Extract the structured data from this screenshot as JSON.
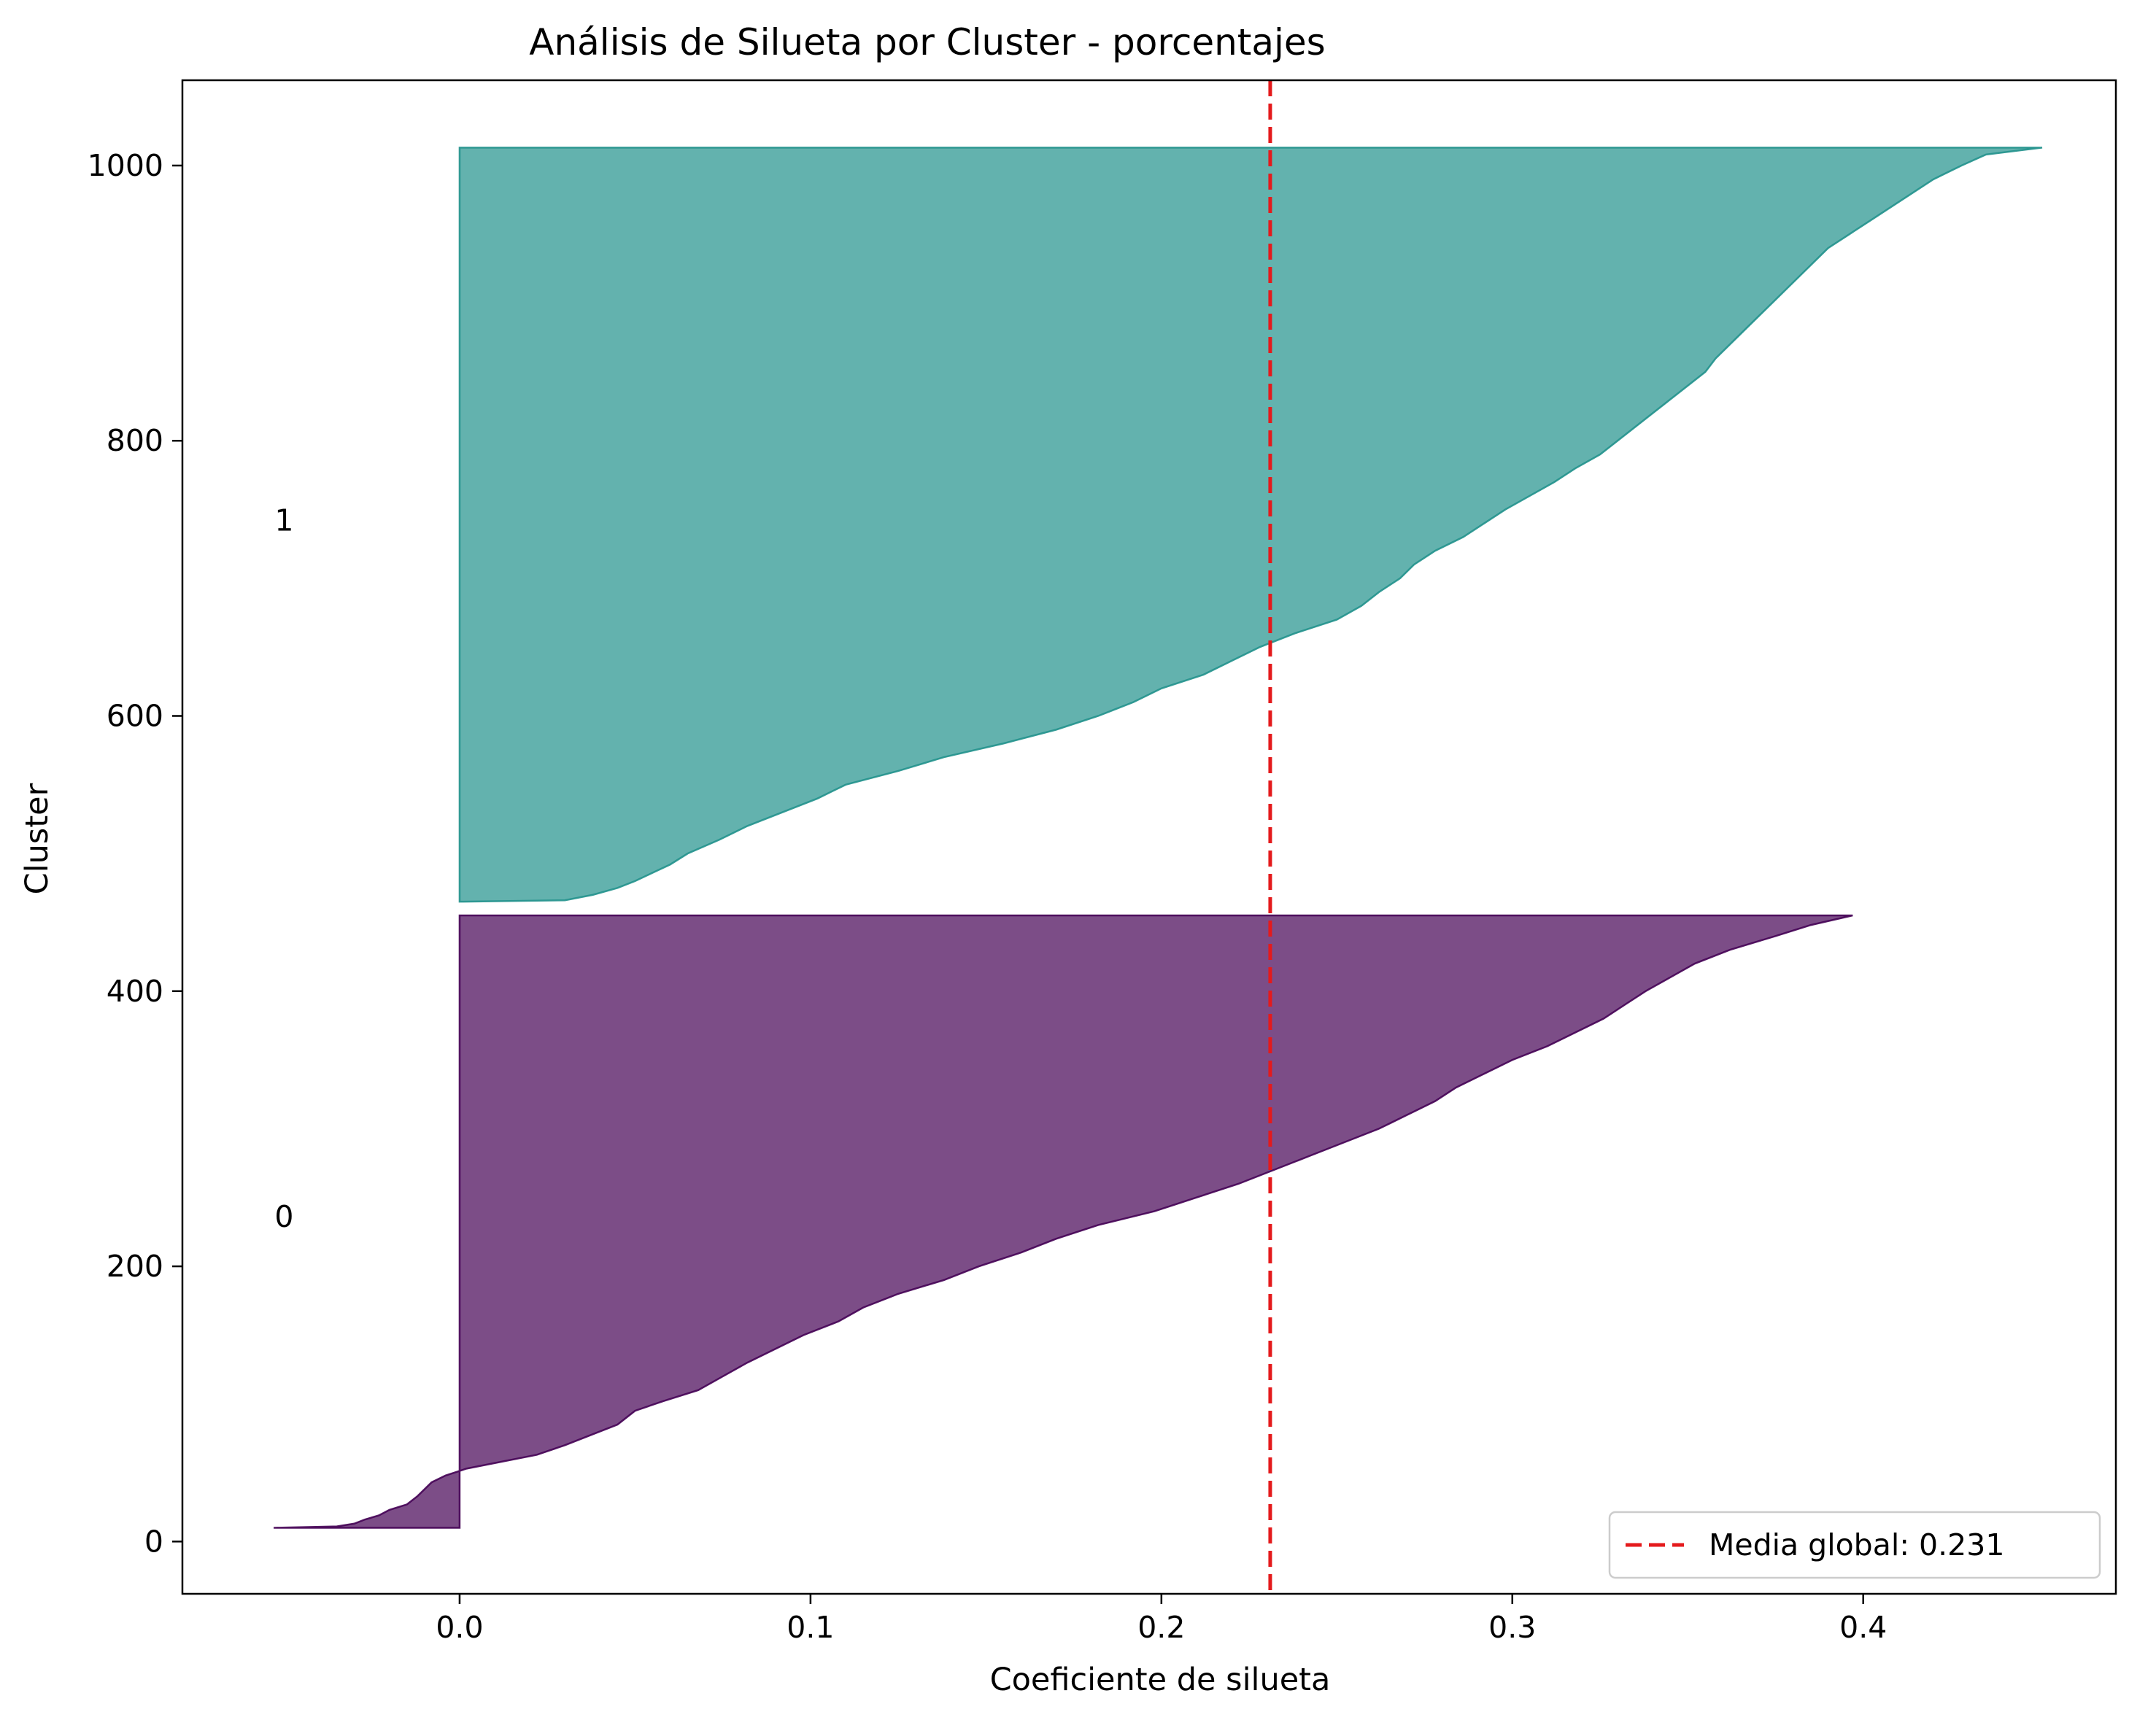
{
  "chart_data": {
    "type": "area",
    "title": "Análisis de Silueta por Cluster - porcentajes",
    "xlabel": "Coeficiente de silueta",
    "ylabel": "Cluster",
    "xlim": [
      -0.079,
      0.472
    ],
    "ylim": [
      -38,
      1062
    ],
    "x_ticks": [
      0.0,
      0.1,
      0.2,
      0.3,
      0.4
    ],
    "x_tick_labels": [
      "0.0",
      "0.1",
      "0.2",
      "0.3",
      "0.4"
    ],
    "y_ticks": [
      0,
      200,
      400,
      600,
      800,
      1000
    ],
    "y_tick_labels": [
      "0",
      "200",
      "400",
      "600",
      "800",
      "1000"
    ],
    "grid": false,
    "legend_position": "lower right",
    "series": [
      {
        "label": "0",
        "color": "#440154",
        "alpha": 0.7,
        "y_range": [
          10,
          455
        ],
        "label_position": {
          "x": -0.05,
          "y": 236
        },
        "profile": [
          [
            10,
            -0.053
          ],
          [
            11,
            -0.035
          ],
          [
            13,
            -0.03
          ],
          [
            16,
            -0.027
          ],
          [
            19,
            -0.023
          ],
          [
            23,
            -0.02
          ],
          [
            27,
            -0.015
          ],
          [
            33,
            -0.012
          ],
          [
            38,
            -0.01
          ],
          [
            43,
            -0.008
          ],
          [
            48,
            -0.004
          ],
          [
            53,
            0.002
          ],
          [
            58,
            0.012
          ],
          [
            63,
            0.022
          ],
          [
            70,
            0.03
          ],
          [
            78,
            0.038
          ],
          [
            85,
            0.045
          ],
          [
            95,
            0.05
          ],
          [
            102,
            0.058
          ],
          [
            110,
            0.068
          ],
          [
            120,
            0.075
          ],
          [
            130,
            0.082
          ],
          [
            140,
            0.09
          ],
          [
            150,
            0.098
          ],
          [
            160,
            0.108
          ],
          [
            170,
            0.115
          ],
          [
            180,
            0.125
          ],
          [
            190,
            0.138
          ],
          [
            200,
            0.148
          ],
          [
            210,
            0.16
          ],
          [
            220,
            0.17
          ],
          [
            230,
            0.182
          ],
          [
            240,
            0.198
          ],
          [
            250,
            0.21
          ],
          [
            260,
            0.222
          ],
          [
            270,
            0.232
          ],
          [
            280,
            0.242
          ],
          [
            290,
            0.252
          ],
          [
            300,
            0.262
          ],
          [
            310,
            0.27
          ],
          [
            320,
            0.278
          ],
          [
            330,
            0.284
          ],
          [
            340,
            0.292
          ],
          [
            350,
            0.3
          ],
          [
            360,
            0.31
          ],
          [
            370,
            0.318
          ],
          [
            380,
            0.326
          ],
          [
            390,
            0.332
          ],
          [
            400,
            0.338
          ],
          [
            410,
            0.345
          ],
          [
            420,
            0.352
          ],
          [
            430,
            0.362
          ],
          [
            440,
            0.375
          ],
          [
            448,
            0.385
          ],
          [
            455,
            0.397
          ]
        ]
      },
      {
        "label": "1",
        "color": "#21918c",
        "alpha": 0.7,
        "y_range": [
          465,
          1013
        ],
        "label_position": {
          "x": -0.05,
          "y": 742
        },
        "profile": [
          [
            465,
            0.0
          ],
          [
            466,
            0.03
          ],
          [
            470,
            0.038
          ],
          [
            475,
            0.045
          ],
          [
            480,
            0.05
          ],
          [
            486,
            0.055
          ],
          [
            492,
            0.06
          ],
          [
            500,
            0.065
          ],
          [
            510,
            0.074
          ],
          [
            520,
            0.082
          ],
          [
            530,
            0.092
          ],
          [
            540,
            0.102
          ],
          [
            550,
            0.11
          ],
          [
            560,
            0.125
          ],
          [
            570,
            0.138
          ],
          [
            580,
            0.155
          ],
          [
            590,
            0.17
          ],
          [
            600,
            0.182
          ],
          [
            610,
            0.192
          ],
          [
            620,
            0.2
          ],
          [
            630,
            0.212
          ],
          [
            640,
            0.22
          ],
          [
            650,
            0.228
          ],
          [
            660,
            0.238
          ],
          [
            670,
            0.25
          ],
          [
            680,
            0.257
          ],
          [
            690,
            0.262
          ],
          [
            700,
            0.268
          ],
          [
            710,
            0.272
          ],
          [
            720,
            0.278
          ],
          [
            730,
            0.286
          ],
          [
            740,
            0.292
          ],
          [
            750,
            0.298
          ],
          [
            760,
            0.305
          ],
          [
            770,
            0.312
          ],
          [
            780,
            0.318
          ],
          [
            790,
            0.325
          ],
          [
            800,
            0.33
          ],
          [
            810,
            0.335
          ],
          [
            820,
            0.34
          ],
          [
            830,
            0.345
          ],
          [
            840,
            0.35
          ],
          [
            850,
            0.355
          ],
          [
            860,
            0.358
          ],
          [
            870,
            0.362
          ],
          [
            880,
            0.366
          ],
          [
            890,
            0.37
          ],
          [
            900,
            0.374
          ],
          [
            910,
            0.378
          ],
          [
            920,
            0.382
          ],
          [
            930,
            0.386
          ],
          [
            940,
            0.39
          ],
          [
            950,
            0.396
          ],
          [
            960,
            0.402
          ],
          [
            970,
            0.408
          ],
          [
            980,
            0.414
          ],
          [
            990,
            0.42
          ],
          [
            1000,
            0.428
          ],
          [
            1008,
            0.435
          ],
          [
            1013,
            0.451
          ]
        ]
      }
    ],
    "reference_line": {
      "x": 0.231,
      "color": "#e41a1c",
      "style": "dashed",
      "legend_label": "Media global: 0.231"
    }
  }
}
